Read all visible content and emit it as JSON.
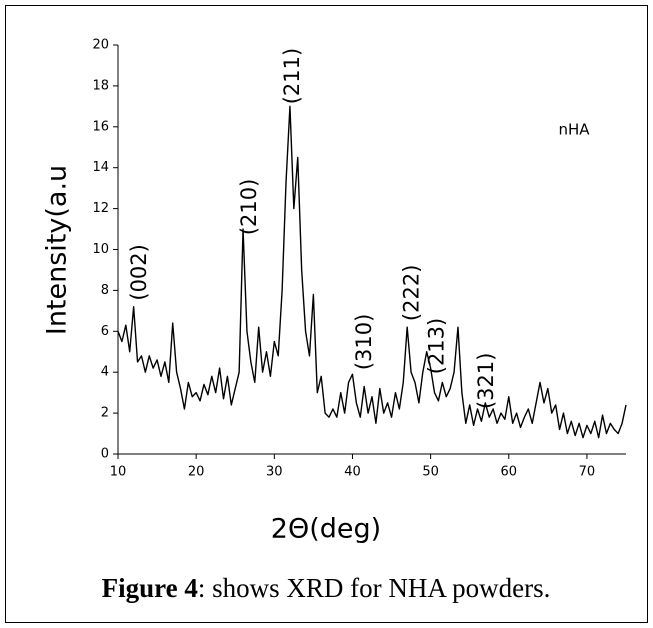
{
  "chart_data": {
    "type": "line",
    "xlabel": "2Θ(deg)",
    "ylabel": "Intensity(a.u",
    "caption": {
      "label": "Figure 4",
      "text": ": shows XRD for NHA powders."
    },
    "xlim": [
      10,
      75
    ],
    "xticks": [
      10,
      20,
      30,
      40,
      50,
      60,
      70
    ],
    "ylim": [
      0,
      20
    ],
    "yticks": [
      0,
      2,
      4,
      6,
      8,
      10,
      12,
      14,
      16,
      18,
      20
    ],
    "legend": "upper right",
    "x": [
      10,
      10.5,
      11,
      11.5,
      12,
      12.5,
      13,
      13.5,
      14,
      14.5,
      15,
      15.5,
      16,
      16.5,
      17,
      17.5,
      18,
      18.5,
      19,
      19.5,
      20,
      20.5,
      21,
      21.5,
      22,
      22.5,
      23,
      23.5,
      24,
      24.5,
      25,
      25.5,
      26,
      26.5,
      27,
      27.5,
      28,
      28.5,
      29,
      29.5,
      30,
      30.5,
      31,
      31.5,
      32,
      32.5,
      33,
      33.5,
      34,
      34.5,
      35,
      35.5,
      36,
      36.5,
      37,
      37.5,
      38,
      38.5,
      39,
      39.5,
      40,
      40.5,
      41,
      41.5,
      42,
      42.5,
      43,
      43.5,
      44,
      44.5,
      45,
      45.5,
      46,
      46.5,
      47,
      47.5,
      48,
      48.5,
      49,
      49.5,
      50,
      50.5,
      51,
      51.5,
      52,
      52.5,
      53,
      53.5,
      54,
      54.5,
      55,
      55.5,
      56,
      56.5,
      57,
      57.5,
      58,
      58.5,
      59,
      59.5,
      60,
      60.5,
      61,
      61.5,
      62,
      62.5,
      63,
      63.5,
      64,
      64.5,
      65,
      65.5,
      66,
      66.5,
      67,
      67.5,
      68,
      68.5,
      69,
      69.5,
      70,
      70.5,
      71,
      71.5,
      72,
      72.5,
      73,
      73.5,
      74,
      74.5,
      75
    ],
    "series": [
      {
        "name": "nHA",
        "color": "#000000",
        "values": [
          6.0,
          5.5,
          6.3,
          5.0,
          7.2,
          4.5,
          4.8,
          4.0,
          4.8,
          4.2,
          4.6,
          3.8,
          4.5,
          3.5,
          6.4,
          4.0,
          3.2,
          2.2,
          3.5,
          2.8,
          3.0,
          2.6,
          3.4,
          2.9,
          3.8,
          3.0,
          4.2,
          2.7,
          3.8,
          2.4,
          3.2,
          4.0,
          11.0,
          6.0,
          4.5,
          3.5,
          6.2,
          4.0,
          5.0,
          3.8,
          5.5,
          4.8,
          8.0,
          13.3,
          17.0,
          12.0,
          14.5,
          9.0,
          6.0,
          4.8,
          7.8,
          3.0,
          3.8,
          2.0,
          1.8,
          2.2,
          1.8,
          3.0,
          2.0,
          3.5,
          3.9,
          2.5,
          1.8,
          3.3,
          2.0,
          2.8,
          1.5,
          3.2,
          2.0,
          2.5,
          1.8,
          3.0,
          2.2,
          3.5,
          6.2,
          4.0,
          3.5,
          2.5,
          4.0,
          5.0,
          4.2,
          3.0,
          2.6,
          3.5,
          2.8,
          3.2,
          4.0,
          6.2,
          3.0,
          1.5,
          2.4,
          1.4,
          2.2,
          1.6,
          2.5,
          1.8,
          2.2,
          1.5,
          2.0,
          1.7,
          2.8,
          1.5,
          2.0,
          1.3,
          1.8,
          2.2,
          1.5,
          2.5,
          3.5,
          2.5,
          3.2,
          2.0,
          2.4,
          1.2,
          2.0,
          1.0,
          1.6,
          0.9,
          1.5,
          0.8,
          1.4,
          1.0,
          1.6,
          0.8,
          1.9,
          1.0,
          1.5,
          1.2,
          1.0,
          1.5,
          2.4
        ]
      }
    ],
    "annotations": [
      {
        "text": "(002)",
        "x": 12.8,
        "y": 7.5
      },
      {
        "text": "(210)",
        "x": 26.9,
        "y": 10.7
      },
      {
        "text": "(211)",
        "x": 32.4,
        "y": 17.1
      },
      {
        "text": "(310)",
        "x": 41.6,
        "y": 4.1
      },
      {
        "text": "(222)",
        "x": 47.7,
        "y": 6.5
      },
      {
        "text": "(213)",
        "x": 50.9,
        "y": 3.9
      },
      {
        "text": "(321)",
        "x": 57.2,
        "y": 2.2
      }
    ]
  }
}
